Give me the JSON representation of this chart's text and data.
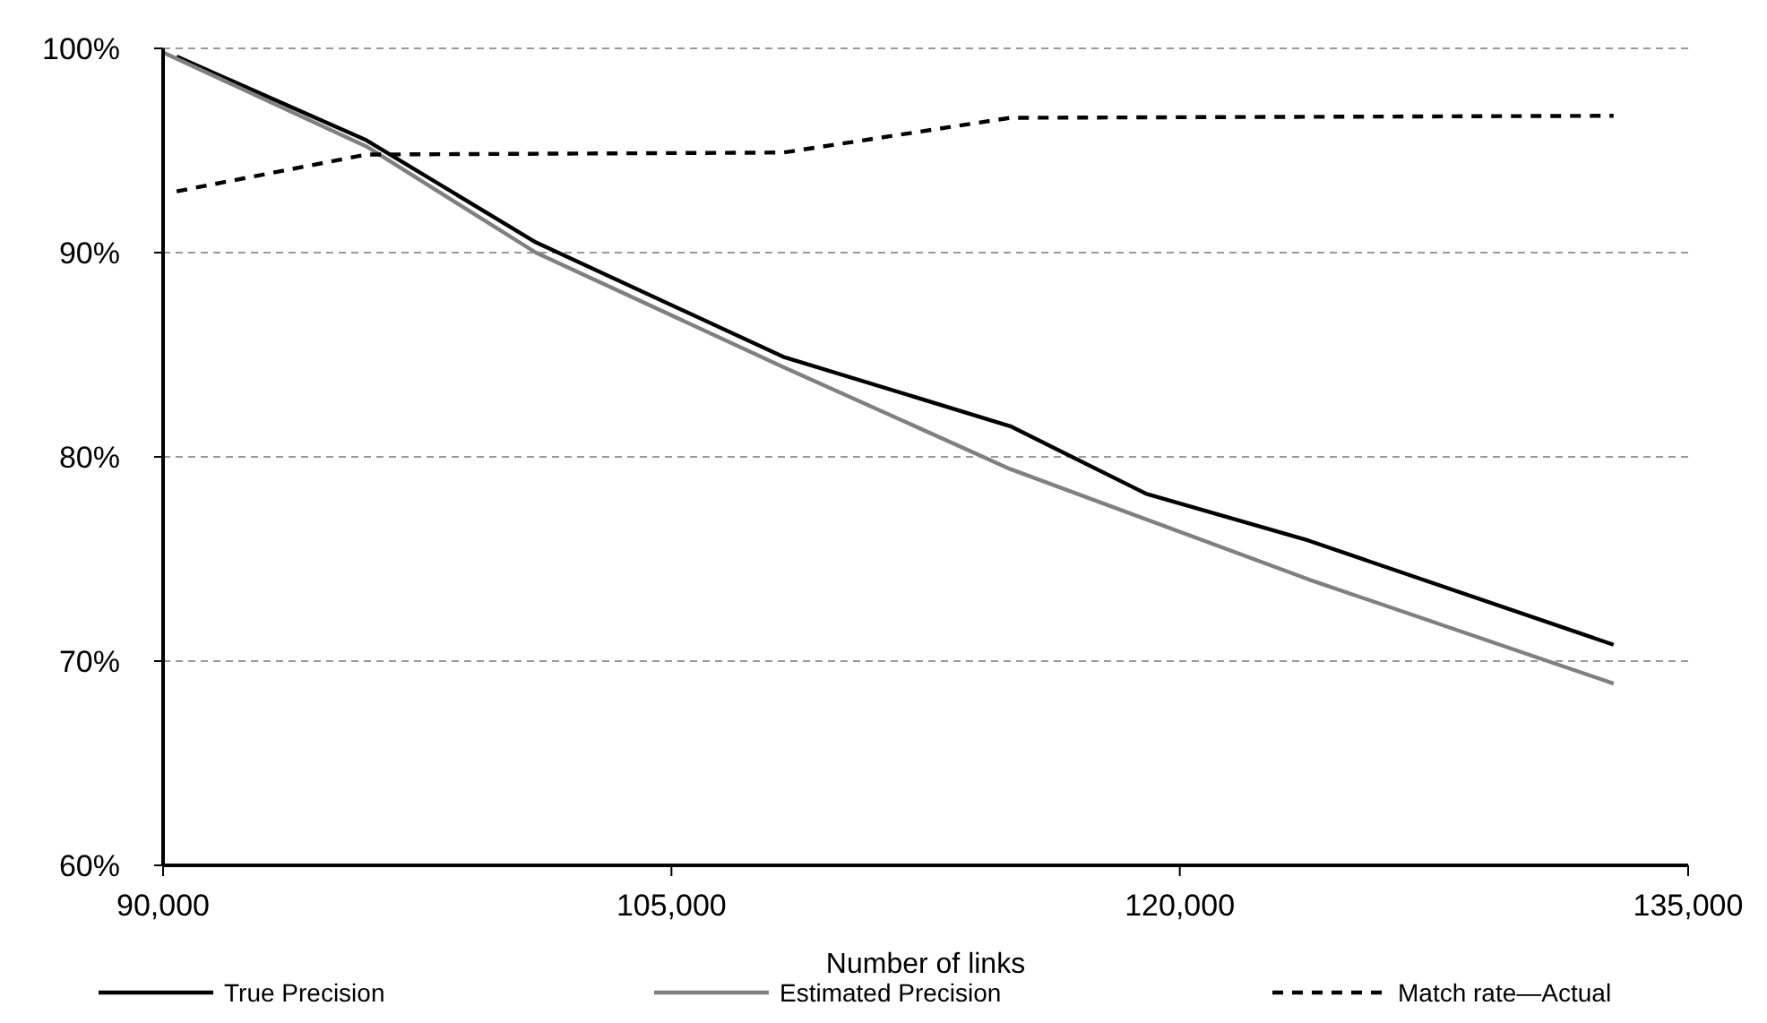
{
  "chart_data": {
    "type": "line",
    "xlabel": "Number of links",
    "xlim": [
      90000,
      135000
    ],
    "xticks": [
      {
        "value": 90000,
        "label": "90,000"
      },
      {
        "value": 105000,
        "label": "105,000"
      },
      {
        "value": 120000,
        "label": "120,000"
      },
      {
        "value": 135000,
        "label": "135,000"
      }
    ],
    "ylim": [
      60,
      100
    ],
    "yticks": [
      {
        "value": 60,
        "label": "60%"
      },
      {
        "value": 70,
        "label": "70%"
      },
      {
        "value": 80,
        "label": "80%"
      },
      {
        "value": 90,
        "label": "90%"
      },
      {
        "value": 100,
        "label": "100%"
      }
    ],
    "grid": "y",
    "legend": "bottom",
    "marker": "none",
    "series": [
      {
        "name": "True Precision",
        "color": "#000000",
        "line_style": "solid",
        "x": [
          90400,
          96000,
          101000,
          108300,
          115000,
          119000,
          123800,
          132800
        ],
        "values": [
          99.6,
          95.5,
          90.5,
          84.9,
          81.5,
          78.2,
          75.9,
          70.8
        ]
      },
      {
        "name": "Estimated Precision",
        "color": "#808080",
        "line_style": "solid",
        "x": [
          90000,
          96000,
          101000,
          108300,
          115000,
          123800,
          132800
        ],
        "values": [
          99.8,
          95.2,
          90.0,
          84.4,
          79.4,
          74.0,
          68.9
        ]
      },
      {
        "name": "Match rate—Actual",
        "color": "#000000",
        "line_style": "dashed",
        "x": [
          90400,
          96000,
          108300,
          115000,
          132800
        ],
        "values": [
          93.0,
          94.8,
          94.9,
          96.6,
          96.7
        ]
      }
    ]
  }
}
